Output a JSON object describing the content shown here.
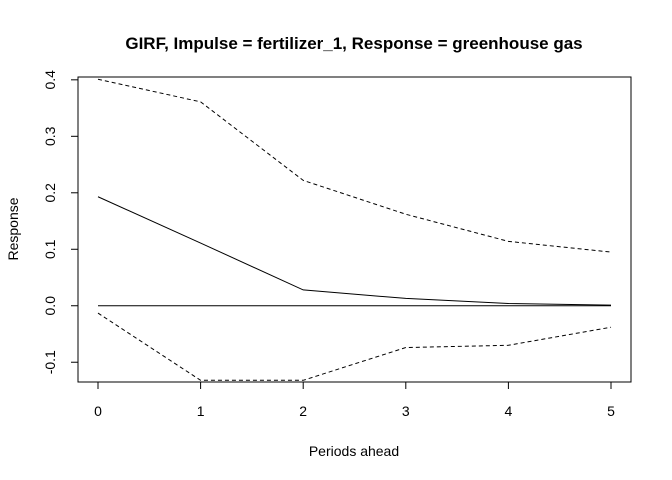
{
  "chart_data": {
    "type": "line",
    "title": "GIRF, Impulse = fertilizer_1, Response = greenhouse gas",
    "xlabel": "Periods ahead",
    "ylabel": "Response",
    "x": [
      0,
      1,
      2,
      3,
      4,
      5
    ],
    "xlim": [
      0,
      5
    ],
    "ylim": [
      -0.135,
      0.405
    ],
    "x_ticks": [
      "0",
      "1",
      "2",
      "3",
      "4",
      "5"
    ],
    "y_ticks": [
      "-0.1",
      "0.0",
      "0.1",
      "0.2",
      "0.3",
      "0.4"
    ],
    "grid": false,
    "series": [
      {
        "values": [
          0.193,
          0.111,
          0.028,
          0.013,
          0.004,
          0.001
        ],
        "style": "solid",
        "color": "#000000"
      },
      {
        "values": [
          0.401,
          0.361,
          0.222,
          0.162,
          0.114,
          0.095
        ],
        "style": "dashed",
        "color": "#000000"
      },
      {
        "values": [
          -0.013,
          -0.132,
          -0.132,
          -0.074,
          -0.07,
          -0.038
        ],
        "style": "dashed",
        "color": "#000000"
      },
      {
        "values": [
          0,
          0,
          0,
          0,
          0,
          0
        ],
        "style": "solid",
        "color": "#000000"
      }
    ]
  }
}
